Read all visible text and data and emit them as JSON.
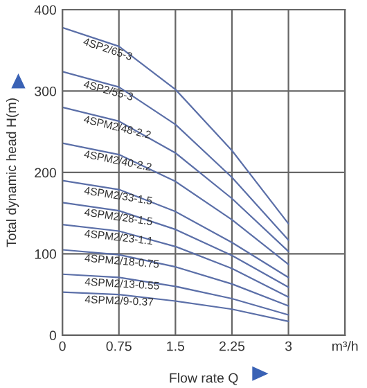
{
  "chart_data": {
    "type": "line",
    "xlabel": "Flow rate Q",
    "ylabel": "Total dynamic head H(m)",
    "x": [
      0,
      0.75,
      1.5,
      2.25,
      3
    ],
    "series": [
      {
        "name": "4SP2/65-3",
        "color": "#5b6fa8",
        "values": [
          378,
          355,
          302,
          227,
          137
        ]
      },
      {
        "name": "4SP2/55-3",
        "color": "#5b6fa8",
        "values": [
          324,
          305,
          259,
          194,
          117
        ]
      },
      {
        "name": "4SPM2/48-2.2",
        "color": "#5b6fa8",
        "values": [
          280,
          263,
          224,
          168,
          103
        ]
      },
      {
        "name": "4SPM2/40-2.2",
        "color": "#5b6fa8",
        "values": [
          236,
          222,
          189,
          142,
          87
        ]
      },
      {
        "name": "4SPM2/33-1.5",
        "color": "#5b6fa8",
        "values": [
          190,
          179,
          152,
          114,
          71
        ]
      },
      {
        "name": "4SPM2/28-1.5",
        "color": "#5b6fa8",
        "values": [
          163,
          153,
          130,
          98,
          59
        ]
      },
      {
        "name": "4SPM2/23-1.1",
        "color": "#5b6fa8",
        "values": [
          136,
          128,
          109,
          82,
          47
        ]
      },
      {
        "name": "4SPM2/18-0.75",
        "color": "#5b6fa8",
        "values": [
          105,
          99,
          84,
          63,
          36
        ]
      },
      {
        "name": "4SPM2/13-0.55",
        "color": "#5b6fa8",
        "values": [
          75,
          71,
          60,
          45,
          25
        ]
      },
      {
        "name": "4SPM2/9-0.37",
        "color": "#5b6fa8",
        "values": [
          53,
          50,
          42,
          32,
          17
        ]
      }
    ],
    "xlim": [
      0,
      3.75
    ],
    "xticks": [
      0,
      0.75,
      1.5,
      2.25,
      3,
      {
        "value": 3.75,
        "label": "m³/h"
      }
    ],
    "ylim": [
      0,
      400
    ],
    "yticks": [
      0,
      100,
      200,
      300,
      400
    ],
    "grid": true,
    "legend": false,
    "marker": "none",
    "line_style": "solid"
  }
}
